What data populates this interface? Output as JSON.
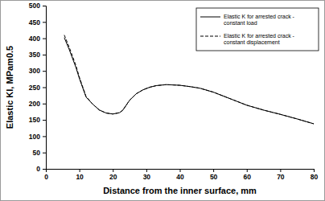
{
  "chart_data": {
    "type": "line",
    "xlabel": "Distance from the inner surface, mm",
    "ylabel": "Elastic KI, MPam0.5",
    "x": [
      5.5,
      7,
      9,
      10,
      12,
      14,
      16,
      18,
      20,
      22,
      23,
      25,
      27,
      29,
      31,
      33,
      36,
      40,
      43,
      46,
      50,
      55,
      60,
      65,
      70,
      75,
      80
    ],
    "series": [
      {
        "name": "Elastic K for arrested crack - constant load",
        "color": "#000000",
        "line_style": "solid",
        "values": [
          402,
          365,
          310,
          277,
          220,
          198,
          180,
          171,
          168,
          172,
          180,
          210,
          230,
          242,
          250,
          255,
          258,
          256,
          252,
          247,
          235,
          215,
          195,
          180,
          167,
          153,
          138
        ]
      },
      {
        "name": "Elastic K for arrested crack - constant displacement",
        "color": "#000000",
        "line_style": "dashed",
        "values": [
          410,
          372,
          316,
          281,
          222,
          198,
          180,
          171,
          168,
          172,
          180,
          210,
          230,
          242,
          250,
          255,
          258,
          256,
          252,
          247,
          235,
          215,
          195,
          180,
          167,
          153,
          138
        ]
      }
    ],
    "xlim": [
      0,
      80
    ],
    "xticks": [
      0,
      10,
      20,
      30,
      40,
      50,
      60,
      70,
      80
    ],
    "ylim": [
      0,
      500
    ],
    "yticks": [
      0,
      50,
      100,
      150,
      200,
      250,
      300,
      350,
      400,
      450,
      500
    ],
    "grid": false,
    "legend": "upper right"
  }
}
